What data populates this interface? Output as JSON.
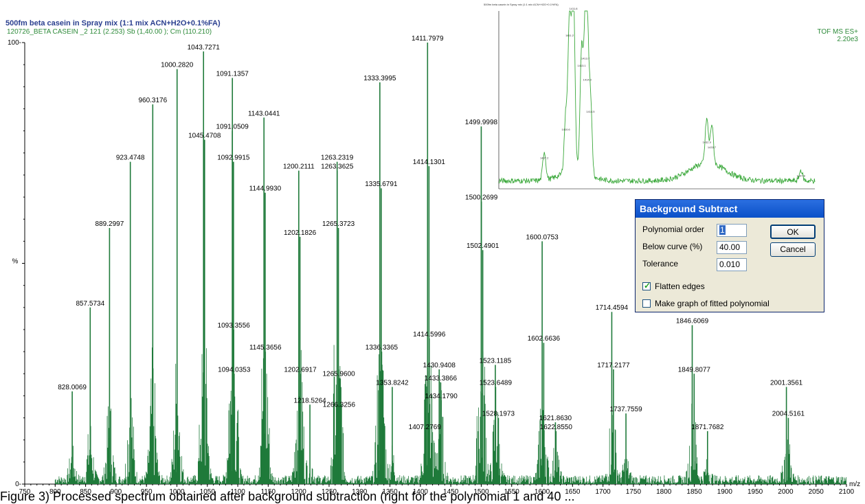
{
  "header": {
    "title": "500fm beta casein in Spray mix (1:1 mix ACN+H2O+0.1%FA)",
    "subtitle": "120726_BETA CASEIN _2 121 (2.253) Sb (1,40.00 ); Cm (110.210)",
    "tof": "TOF MS ES+",
    "intensity": "2.20e3"
  },
  "colors": {
    "trace": "#1f7a3a",
    "title": "#2a3f8f",
    "subtitle": "#2e8b3a"
  },
  "chart_data": [
    {
      "type": "line",
      "title": "500fm beta casein in Spray mix (1:1 mix ACN+H2O+0.1%FA)",
      "xlabel": "m/z",
      "ylabel": "%",
      "xlim": [
        750,
        2100
      ],
      "ylim": [
        0,
        100
      ],
      "x_ticks": [
        750,
        800,
        850,
        900,
        950,
        1000,
        1050,
        1100,
        1150,
        1200,
        1250,
        1300,
        1350,
        1400,
        1450,
        1500,
        1550,
        1600,
        1650,
        1700,
        1750,
        1800,
        1850,
        1900,
        1950,
        2000,
        2050,
        2100
      ],
      "y_ticks": [
        0,
        100
      ],
      "peaks": [
        {
          "x": 828.0069,
          "y": 21
        },
        {
          "x": 857.5734,
          "y": 40
        },
        {
          "x": 889.2997,
          "y": 58
        },
        {
          "x": 923.4748,
          "y": 73
        },
        {
          "x": 960.3176,
          "y": 86
        },
        {
          "x": 1000.282,
          "y": 94
        },
        {
          "x": 1043.7271,
          "y": 98
        },
        {
          "x": 1045.4708,
          "y": 78
        },
        {
          "x": 1091.0509,
          "y": 80
        },
        {
          "x": 1091.1357,
          "y": 92
        },
        {
          "x": 1092.9915,
          "y": 73
        },
        {
          "x": 1093.3556,
          "y": 35
        },
        {
          "x": 1094.0353,
          "y": 25
        },
        {
          "x": 1143.0441,
          "y": 83
        },
        {
          "x": 1144.993,
          "y": 66
        },
        {
          "x": 1145.3656,
          "y": 30
        },
        {
          "x": 1200.2111,
          "y": 71
        },
        {
          "x": 1202.1826,
          "y": 56
        },
        {
          "x": 1202.6917,
          "y": 25
        },
        {
          "x": 1218.5264,
          "y": 18
        },
        {
          "x": 1263.2319,
          "y": 73
        },
        {
          "x": 1263.3625,
          "y": 71
        },
        {
          "x": 1265.3723,
          "y": 58
        },
        {
          "x": 1265.96,
          "y": 24
        },
        {
          "x": 1266.3256,
          "y": 17
        },
        {
          "x": 1333.3995,
          "y": 91
        },
        {
          "x": 1335.6791,
          "y": 67
        },
        {
          "x": 1336.3365,
          "y": 30
        },
        {
          "x": 1353.8242,
          "y": 22
        },
        {
          "x": 1407.2769,
          "y": 12
        },
        {
          "x": 1411.7979,
          "y": 100
        },
        {
          "x": 1414.1301,
          "y": 72
        },
        {
          "x": 1414.5996,
          "y": 33
        },
        {
          "x": 1430.9408,
          "y": 26
        },
        {
          "x": 1433.3866,
          "y": 23
        },
        {
          "x": 1434.179,
          "y": 19
        },
        {
          "x": 1499.9998,
          "y": 81
        },
        {
          "x": 1500.2699,
          "y": 64
        },
        {
          "x": 1502.4901,
          "y": 53
        },
        {
          "x": 1523.1185,
          "y": 27
        },
        {
          "x": 1523.6489,
          "y": 22
        },
        {
          "x": 1528.1973,
          "y": 15
        },
        {
          "x": 1600.0753,
          "y": 55
        },
        {
          "x": 1602.6636,
          "y": 32
        },
        {
          "x": 1621.863,
          "y": 14
        },
        {
          "x": 1622.855,
          "y": 12
        },
        {
          "x": 1714.4594,
          "y": 39
        },
        {
          "x": 1717.2177,
          "y": 26
        },
        {
          "x": 1737.7559,
          "y": 16
        },
        {
          "x": 1846.6069,
          "y": 36
        },
        {
          "x": 1849.8077,
          "y": 25
        },
        {
          "x": 1871.7682,
          "y": 12
        },
        {
          "x": 2001.3561,
          "y": 22
        },
        {
          "x": 2004.5161,
          "y": 15
        }
      ],
      "labels": [
        "828.0069",
        "857.5734",
        "889.2997",
        "923.4748",
        "960.3176",
        "1000.2820",
        "1043.7271",
        "1045.4708",
        "1091.0509",
        "1091.1357",
        "1092.9915",
        "1093.3556",
        "1094.0353",
        "1143.0441",
        "1144.9930",
        "1145.3656",
        "1200.2111",
        "1202.1826",
        "1202.6917",
        "1218.5264",
        "1263.2319",
        "1263.3625",
        "1265.3723",
        "1265.9600",
        "1266.3256",
        "1333.3995",
        "1335.6791",
        "1336.3365",
        "1353.8242",
        "1407.2769",
        "1411.7979",
        "1414.1301",
        "1414.5996",
        "1430.9408",
        "1433.3866",
        "1434.1790",
        "1499.9998",
        "1500.2699",
        "1502.4901",
        "1523.1185",
        "1523.6489",
        "1528.1973",
        "1600.0753",
        "1602.6636",
        "1621.8630",
        "1622.8550",
        "1714.4594",
        "1717.2177",
        "1737.7559",
        "1846.6069",
        "1849.8077",
        "1871.7682",
        "2001.3561",
        "2004.5161"
      ]
    },
    {
      "type": "line",
      "title": "500fm beta casein in Spray mix (1:1 mix ACN+H2O+0.1%FA)",
      "xlim": [
        1400,
        1450
      ],
      "ylim": [
        0,
        100
      ],
      "peaks": [
        {
          "x": 1411.8,
          "y": 100
        },
        {
          "x": 1411.2,
          "y": 85
        },
        {
          "x": 1413.7,
          "y": 72
        },
        {
          "x": 1413.1,
          "y": 68
        },
        {
          "x": 1414.0,
          "y": 60
        },
        {
          "x": 1414.5,
          "y": 42
        },
        {
          "x": 1410.6,
          "y": 32
        },
        {
          "x": 1432.9,
          "y": 25
        },
        {
          "x": 1433.7,
          "y": 22
        },
        {
          "x": 1407.2,
          "y": 16
        },
        {
          "x": 1447.8,
          "y": 6
        }
      ]
    }
  ],
  "dialog": {
    "title": "Background Subtract",
    "polynomial_label": "Polynomial order",
    "polynomial_value": "1",
    "below_label": "Below curve (%)",
    "below_value": "40.00",
    "tolerance_label": "Tolerance",
    "tolerance_value": "0.010",
    "ok_label": "OK",
    "cancel_label": "Cancel",
    "flatten_label": "Flatten edges",
    "flatten_checked": true,
    "fitted_label": "Make graph of fitted polynomial",
    "fitted_checked": false
  },
  "caption": "Figure 3) Processed spectrum obtained after background subtraction (right for the polynomial 1 and 40 ..."
}
